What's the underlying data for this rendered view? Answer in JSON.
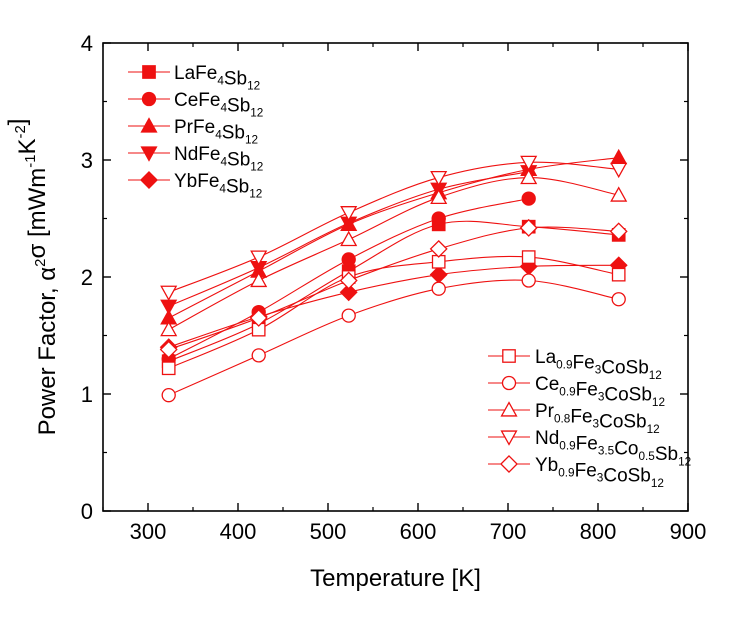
{
  "chart_data": {
    "type": "line",
    "xlabel": "Temperature [K]",
    "ylabel": {
      "base": "Power Factor, α",
      "sup1": "2",
      "mid": "σ [mWm",
      "sup2": "-1",
      "mid2": "K",
      "sup3": "-2",
      "end": "]"
    },
    "xlim": [
      250,
      900
    ],
    "ylim": [
      0,
      4
    ],
    "xticks": [
      300,
      400,
      500,
      600,
      700,
      800,
      900
    ],
    "yticks": [
      0,
      1,
      2,
      3,
      4
    ],
    "x": [
      323,
      423,
      523,
      623,
      723,
      823
    ],
    "color": "#ee1111",
    "legend_filled_location": "top-left",
    "legend_open_location": "bottom-right",
    "series": [
      {
        "name": "LaFe4Sb12",
        "marker": "square",
        "filled": true,
        "values": [
          1.28,
          1.6,
          2.05,
          2.45,
          2.43,
          2.36
        ],
        "label": [
          {
            "t": "LaFe"
          },
          {
            "t": "4",
            "s": "sub"
          },
          {
            "t": "Sb"
          },
          {
            "t": "12",
            "s": "sub"
          }
        ]
      },
      {
        "name": "CeFe4Sb12",
        "marker": "circle",
        "filled": true,
        "values": [
          1.3,
          1.7,
          2.15,
          2.5,
          2.67,
          null
        ],
        "label": [
          {
            "t": "CeFe"
          },
          {
            "t": "4",
            "s": "sub"
          },
          {
            "t": "Sb"
          },
          {
            "t": "12",
            "s": "sub"
          }
        ]
      },
      {
        "name": "PrFe4Sb12",
        "marker": "triangle-up",
        "filled": true,
        "values": [
          1.65,
          2.05,
          2.45,
          2.72,
          2.92,
          3.02
        ],
        "label": [
          {
            "t": "PrFe"
          },
          {
            "t": "4",
            "s": "sub"
          },
          {
            "t": "Sb"
          },
          {
            "t": "12",
            "s": "sub"
          }
        ]
      },
      {
        "name": "NdFe4Sb12",
        "marker": "triangle-down",
        "filled": true,
        "values": [
          1.75,
          2.08,
          2.46,
          2.75,
          2.9,
          null
        ],
        "label": [
          {
            "t": "NdFe"
          },
          {
            "t": "4",
            "s": "sub"
          },
          {
            "t": "Sb"
          },
          {
            "t": "12",
            "s": "sub"
          }
        ]
      },
      {
        "name": "YbFe4Sb12",
        "marker": "diamond",
        "filled": true,
        "values": [
          1.4,
          1.66,
          1.87,
          2.02,
          2.09,
          2.1
        ],
        "label": [
          {
            "t": "YbFe"
          },
          {
            "t": "4",
            "s": "sub"
          },
          {
            "t": "Sb"
          },
          {
            "t": "12",
            "s": "sub"
          }
        ]
      },
      {
        "name": "La0.9Fe3CoSb12",
        "marker": "square",
        "filled": false,
        "values": [
          1.22,
          1.55,
          2.0,
          2.13,
          2.17,
          2.02
        ],
        "label": [
          {
            "t": "La"
          },
          {
            "t": "0.9",
            "s": "sub"
          },
          {
            "t": "Fe"
          },
          {
            "t": "3",
            "s": "sub"
          },
          {
            "t": "CoSb"
          },
          {
            "t": "12",
            "s": "sub"
          }
        ]
      },
      {
        "name": "Ce0.9Fe3CoSb12",
        "marker": "circle",
        "filled": false,
        "values": [
          0.99,
          1.33,
          1.67,
          1.9,
          1.97,
          1.81
        ],
        "label": [
          {
            "t": "Ce"
          },
          {
            "t": "0.9",
            "s": "sub"
          },
          {
            "t": "Fe"
          },
          {
            "t": "3",
            "s": "sub"
          },
          {
            "t": "CoSb"
          },
          {
            "t": "12",
            "s": "sub"
          }
        ]
      },
      {
        "name": "Pr0.8Fe3CoSb12",
        "marker": "triangle-up",
        "filled": false,
        "values": [
          1.55,
          1.97,
          2.32,
          2.68,
          2.85,
          2.7
        ],
        "label": [
          {
            "t": "Pr"
          },
          {
            "t": "0.8",
            "s": "sub"
          },
          {
            "t": "Fe"
          },
          {
            "t": "3",
            "s": "sub"
          },
          {
            "t": "CoSb"
          },
          {
            "t": "12",
            "s": "sub"
          }
        ]
      },
      {
        "name": "Nd0.9Fe3.5Co0.5Sb12",
        "marker": "triangle-down",
        "filled": false,
        "values": [
          1.87,
          2.17,
          2.55,
          2.85,
          2.98,
          2.92
        ],
        "label": [
          {
            "t": "Nd"
          },
          {
            "t": "0.9",
            "s": "sub"
          },
          {
            "t": "Fe"
          },
          {
            "t": "3.5",
            "s": "sub"
          },
          {
            "t": "Co"
          },
          {
            "t": "0.5",
            "s": "sub"
          },
          {
            "t": "Sb"
          },
          {
            "t": "12",
            "s": "sub"
          }
        ]
      },
      {
        "name": "Yb0.9Fe3CoSb12",
        "marker": "diamond",
        "filled": false,
        "values": [
          1.38,
          1.65,
          1.97,
          2.24,
          2.42,
          2.39
        ],
        "label": [
          {
            "t": "Yb"
          },
          {
            "t": "0.9",
            "s": "sub"
          },
          {
            "t": "Fe"
          },
          {
            "t": "3",
            "s": "sub"
          },
          {
            "t": "CoSb"
          },
          {
            "t": "12",
            "s": "sub"
          }
        ]
      }
    ]
  }
}
